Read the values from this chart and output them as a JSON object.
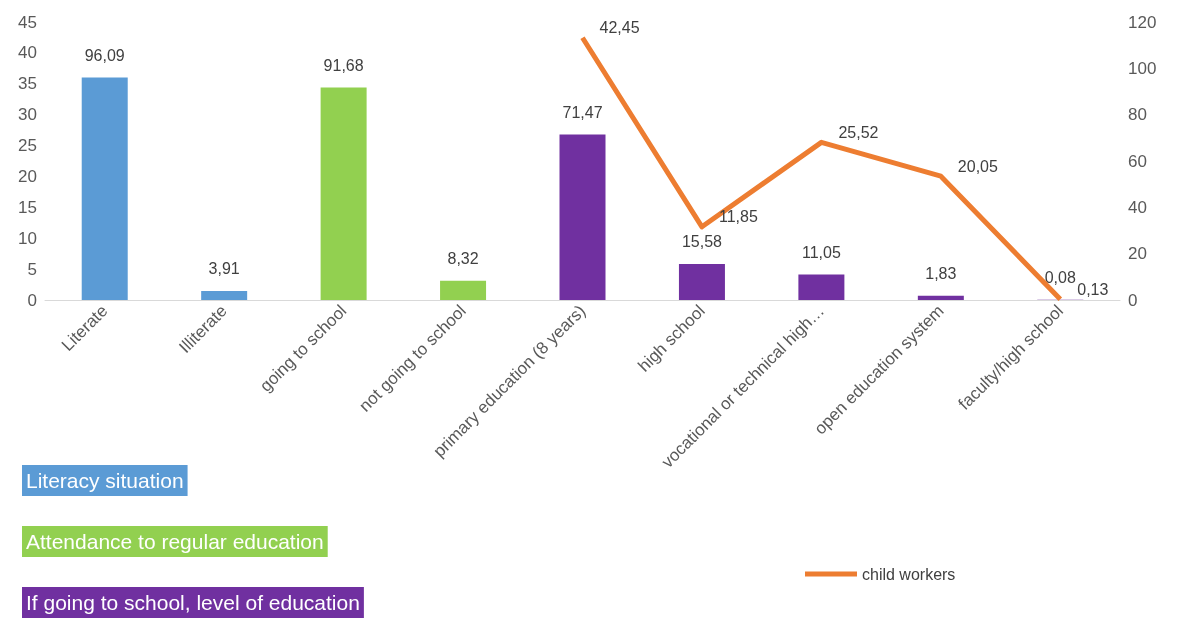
{
  "chart_data": {
    "type": "bar",
    "categories": [
      "Literate",
      "Illiterate",
      "going to school",
      "not going to school",
      "primary education (8 years)",
      "high school",
      "vocational or technical high…",
      "open education system",
      "faculty/high school"
    ],
    "series": [
      {
        "name": "Literacy situation",
        "color": "#5b9bd5",
        "axis": "y2",
        "values": [
          96.09,
          3.91,
          null,
          null,
          null,
          null,
          null,
          null,
          null
        ],
        "value_labels": [
          "96,09",
          "3,91",
          null,
          null,
          null,
          null,
          null,
          null,
          null
        ]
      },
      {
        "name": "Attendance to regular education",
        "color": "#92d050",
        "axis": "y2",
        "values": [
          null,
          null,
          91.68,
          8.32,
          null,
          null,
          null,
          null,
          null
        ],
        "value_labels": [
          null,
          null,
          "91,68",
          "8,32",
          null,
          null,
          null,
          null,
          null
        ]
      },
      {
        "name": "If going to school, level of education",
        "color": "#7030a0",
        "axis": "y2",
        "values": [
          null,
          null,
          null,
          null,
          71.47,
          15.58,
          11.05,
          1.83,
          0.08
        ],
        "value_labels": [
          null,
          null,
          null,
          null,
          "71,47",
          "15,58",
          "11,05",
          "1,83",
          "0,08"
        ]
      },
      {
        "name": "child workers",
        "type": "line",
        "color": "#ed7d31",
        "values": [
          null,
          null,
          null,
          null,
          42.45,
          11.85,
          25.52,
          20.05,
          0.13
        ],
        "value_labels": [
          null,
          null,
          null,
          null,
          "42,45",
          "11,85",
          "25,52",
          "20,05",
          "0,13"
        ]
      }
    ],
    "ylim": [
      0,
      45
    ],
    "yticks": [
      0,
      5,
      10,
      15,
      20,
      25,
      30,
      35,
      40,
      45
    ],
    "y2lim": [
      0,
      120
    ],
    "y2ticks": [
      0,
      20,
      40,
      60,
      80,
      100,
      120
    ],
    "grid": false,
    "legend": "bottom",
    "marker": "none"
  }
}
